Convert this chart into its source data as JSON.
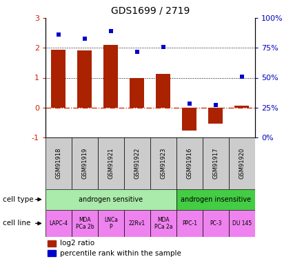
{
  "title": "GDS1699 / 2719",
  "samples": [
    "GSM91918",
    "GSM91919",
    "GSM91921",
    "GSM91922",
    "GSM91923",
    "GSM91916",
    "GSM91917",
    "GSM91920"
  ],
  "log2_ratio": [
    1.93,
    1.92,
    2.1,
    1.0,
    1.13,
    -0.78,
    -0.55,
    0.05
  ],
  "percentile_rank": [
    86,
    83,
    89,
    72,
    76,
    28,
    27,
    51
  ],
  "cell_types": [
    {
      "label": "androgen sensitive",
      "start": 0,
      "end": 5,
      "color": "#AAEAAA"
    },
    {
      "label": "androgen insensitive",
      "start": 5,
      "end": 8,
      "color": "#44CC44"
    }
  ],
  "cell_lines": [
    {
      "label": "LAPC-4",
      "start": 0,
      "end": 1,
      "color": "#EE82EE"
    },
    {
      "label": "MDA\nPCa 2b",
      "start": 1,
      "end": 2,
      "color": "#EE82EE"
    },
    {
      "label": "LNCa\nP",
      "start": 2,
      "end": 3,
      "color": "#EE82EE"
    },
    {
      "label": "22Rv1",
      "start": 3,
      "end": 4,
      "color": "#EE82EE"
    },
    {
      "label": "MDA\nPCa 2a",
      "start": 4,
      "end": 5,
      "color": "#EE82EE"
    },
    {
      "label": "PPC-1",
      "start": 5,
      "end": 6,
      "color": "#EE82EE"
    },
    {
      "label": "PC-3",
      "start": 6,
      "end": 7,
      "color": "#EE82EE"
    },
    {
      "label": "DU 145",
      "start": 7,
      "end": 8,
      "color": "#EE82EE"
    }
  ],
  "ylim_left": [
    -1,
    3
  ],
  "ylim_right": [
    0,
    100
  ],
  "yticks_left": [
    -1,
    0,
    1,
    2,
    3
  ],
  "yticks_right": [
    0,
    25,
    50,
    75,
    100
  ],
  "yticklabels_right": [
    "0%",
    "25%",
    "50%",
    "75%",
    "100%"
  ],
  "bar_color": "#AA2200",
  "dot_color": "#0000CC",
  "left_tick_color": "#CC2200",
  "right_tick_color": "#0000BB",
  "sample_bg_color": "#CCCCCC",
  "legend_red_label": "log2 ratio",
  "legend_blue_label": "percentile rank within the sample",
  "cell_type_label": "cell type",
  "cell_line_label": "cell line",
  "fig_width": 4.25,
  "fig_height": 3.75,
  "dpi": 100
}
